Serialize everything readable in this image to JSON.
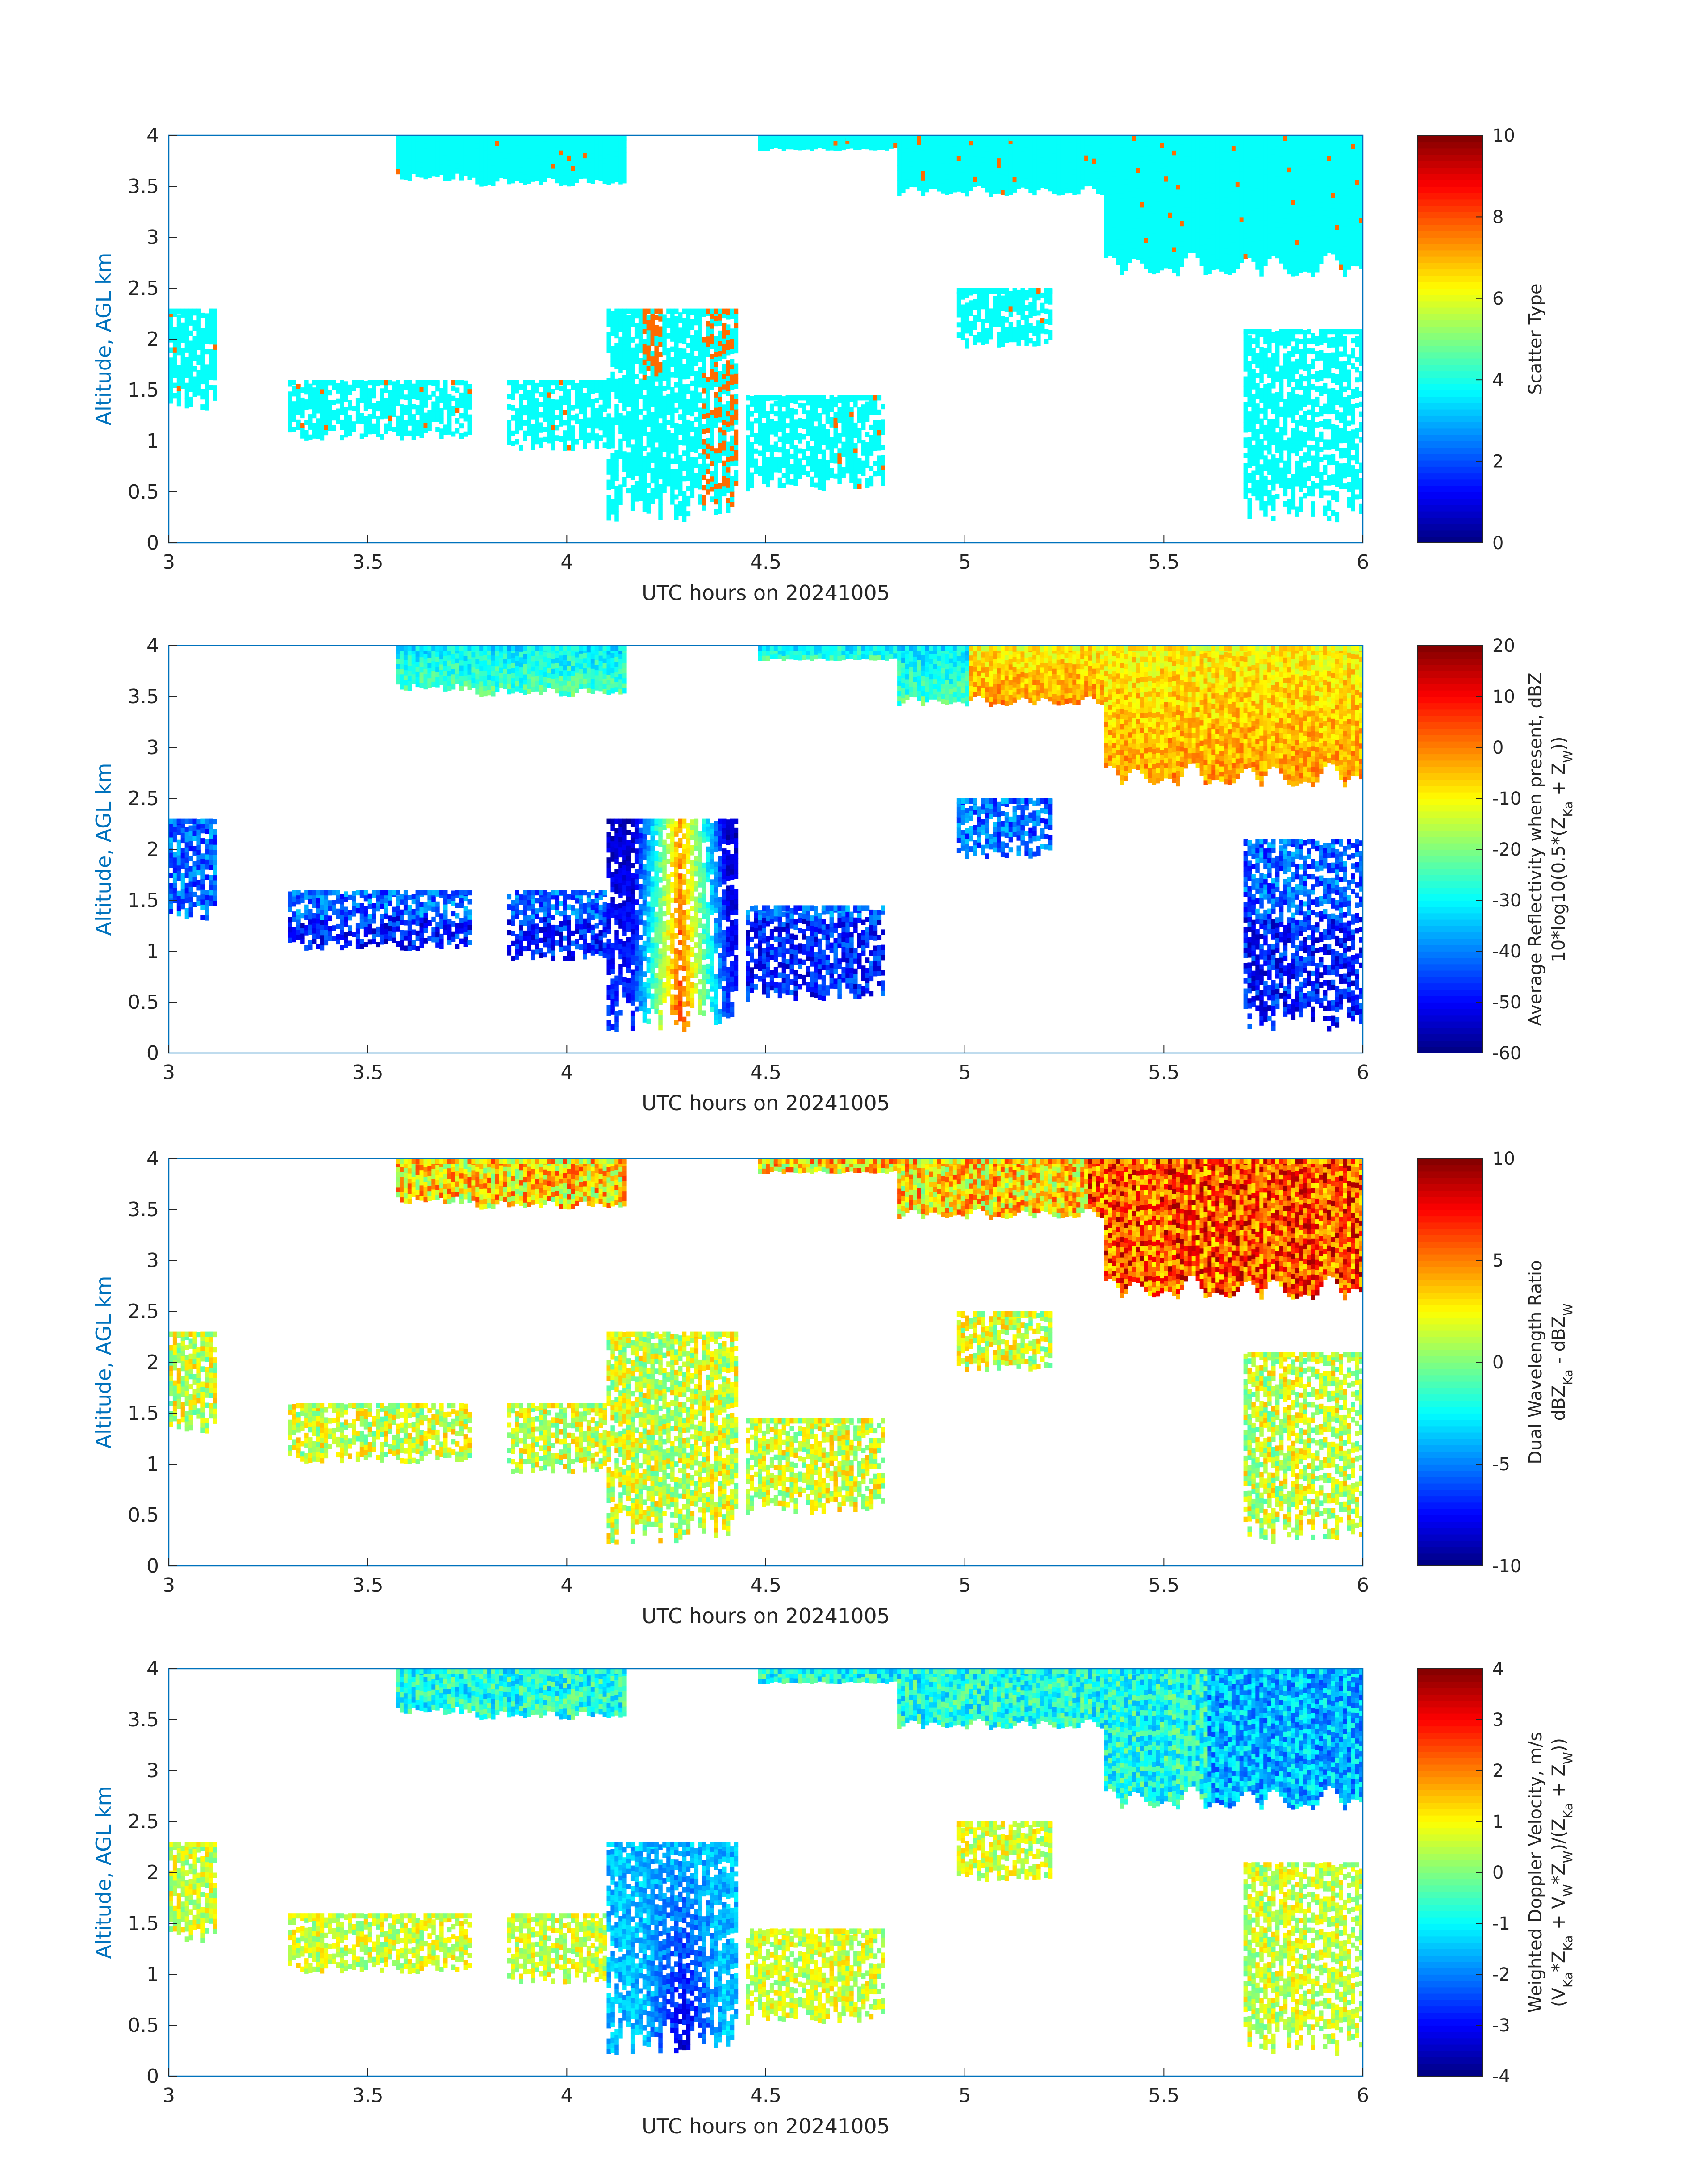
{
  "chart_data": [
    {
      "type": "heatmap",
      "xlabel": "UTC hours on 20241005",
      "ylabel": "Altitude, AGL km",
      "xlim": [
        3,
        6
      ],
      "ylim": [
        0,
        4
      ],
      "xticks": [
        "3",
        "3.5",
        "4",
        "4.5",
        "5",
        "5.5",
        "6"
      ],
      "yticks": [
        "0",
        "0.5",
        "1",
        "1.5",
        "2",
        "2.5",
        "3",
        "3.5",
        "4"
      ],
      "colorbar": {
        "label_lines": [
          "Scatter Type"
        ],
        "range": [
          0,
          10
        ],
        "ticks": [
          "0",
          "2",
          "4",
          "6",
          "8",
          "10"
        ]
      },
      "field": "scatter_type",
      "grid": false
    },
    {
      "type": "heatmap",
      "xlabel": "UTC hours on 20241005",
      "ylabel": "Altitude, AGL km",
      "xlim": [
        3,
        6
      ],
      "ylim": [
        0,
        4
      ],
      "xticks": [
        "3",
        "3.5",
        "4",
        "4.5",
        "5",
        "5.5",
        "6"
      ],
      "yticks": [
        "0",
        "0.5",
        "1",
        "1.5",
        "2",
        "2.5",
        "3",
        "3.5",
        "4"
      ],
      "colorbar": {
        "label_lines": [
          "Average Reflectivity when present, dBZ",
          "10*log10(0.5*(Z",
          "Ka",
          " + Z",
          "W",
          "))"
        ],
        "range": [
          -60,
          20
        ],
        "ticks": [
          "-60",
          "-50",
          "-40",
          "-30",
          "-20",
          "-10",
          "0",
          "10",
          "20"
        ]
      },
      "field": "reflectivity",
      "grid": false
    },
    {
      "type": "heatmap",
      "xlabel": "UTC hours on 20241005",
      "ylabel": "Altitude, AGL km",
      "xlim": [
        3,
        6
      ],
      "ylim": [
        0,
        4
      ],
      "xticks": [
        "3",
        "3.5",
        "4",
        "4.5",
        "5",
        "5.5",
        "6"
      ],
      "yticks": [
        "0",
        "0.5",
        "1",
        "1.5",
        "2",
        "2.5",
        "3",
        "3.5",
        "4"
      ],
      "colorbar": {
        "label_lines": [
          "Dual Wavelength Ratio",
          "dBZ",
          "Ka",
          " - dBZ",
          "W"
        ],
        "range": [
          -10,
          10
        ],
        "ticks": [
          "-10",
          "-5",
          "0",
          "5",
          "10"
        ]
      },
      "field": "dwr",
      "grid": false
    },
    {
      "type": "heatmap",
      "xlabel": "UTC hours on 20241005",
      "ylabel": "Altitude, AGL km",
      "xlim": [
        3,
        6
      ],
      "ylim": [
        0,
        4
      ],
      "xticks": [
        "3",
        "3.5",
        "4",
        "4.5",
        "5",
        "5.5",
        "6"
      ],
      "yticks": [
        "0",
        "0.5",
        "1",
        "1.5",
        "2",
        "2.5",
        "3",
        "3.5",
        "4"
      ],
      "colorbar": {
        "label_lines": [
          "Weighted Doppler Velocity, m/s",
          "(V",
          "Ka",
          "*Z",
          "Ka",
          " + V",
          "W",
          "*Z",
          "W",
          ")/(Z",
          "Ka",
          " + Z",
          "W",
          "))"
        ],
        "range": [
          -4,
          4
        ],
        "ticks": [
          "-4",
          "-3",
          "-2",
          "-1",
          "0",
          "1",
          "2",
          "3",
          "4"
        ]
      },
      "field": "doppler",
      "grid": false
    }
  ],
  "cloud_regions": [
    {
      "t0": 3.57,
      "t1": 3.77,
      "top": 4.0,
      "base": 3.55,
      "id": "upper-a"
    },
    {
      "t0": 3.77,
      "t1": 4.15,
      "top": 4.0,
      "base": 3.5,
      "id": "upper-b"
    },
    {
      "t0": 4.48,
      "t1": 4.83,
      "top": 4.0,
      "base": 3.85,
      "id": "upper-c"
    },
    {
      "t0": 4.83,
      "t1": 5.35,
      "top": 4.0,
      "base": 3.4,
      "id": "upper-d"
    },
    {
      "t0": 5.35,
      "t1": 6.0,
      "top": 4.0,
      "base": 2.6,
      "id": "upper-e"
    },
    {
      "t0": 3.0,
      "t1": 3.12,
      "top": 2.3,
      "base": 1.3,
      "id": "low-a"
    },
    {
      "t0": 3.3,
      "t1": 3.76,
      "top": 1.6,
      "base": 1.0,
      "id": "low-b"
    },
    {
      "t0": 3.85,
      "t1": 4.1,
      "top": 1.6,
      "base": 0.9,
      "id": "low-c"
    },
    {
      "t0": 4.1,
      "t1": 4.43,
      "top": 2.3,
      "base": 0.2,
      "id": "plume"
    },
    {
      "t0": 4.45,
      "t1": 4.8,
      "top": 1.45,
      "base": 0.5,
      "id": "low-d"
    },
    {
      "t0": 4.98,
      "t1": 5.22,
      "top": 2.5,
      "base": 1.9,
      "id": "mid-a"
    },
    {
      "t0": 5.7,
      "t1": 6.0,
      "top": 2.1,
      "base": 0.2,
      "id": "low-e"
    }
  ]
}
